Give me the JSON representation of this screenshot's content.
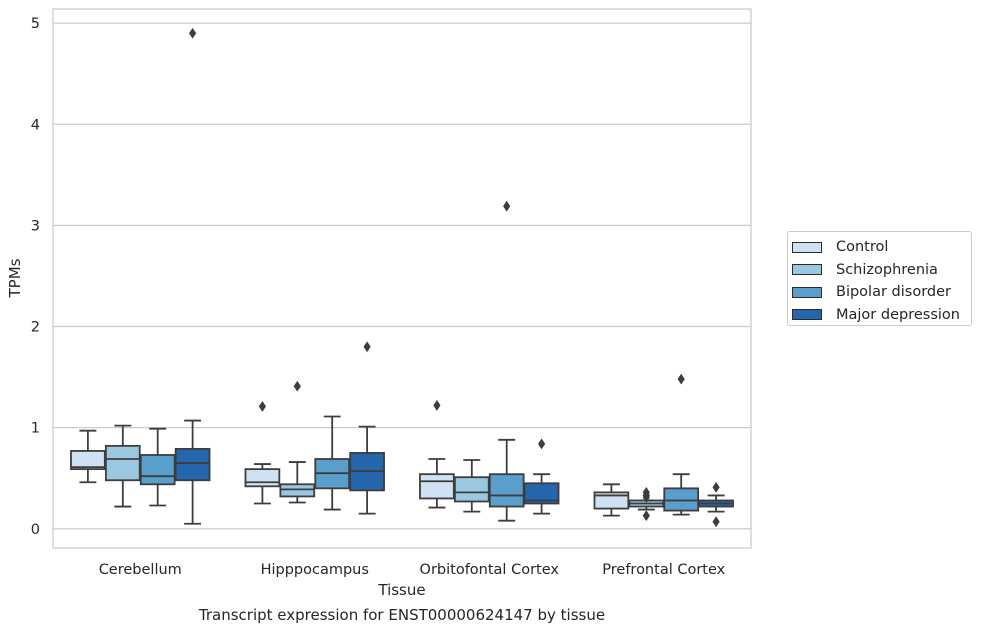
{
  "chart_data": {
    "type": "box",
    "title": "",
    "caption": "Transcript expression for ENST00000624147 by tissue",
    "xlabel": "Tissue",
    "ylabel": "TPMs",
    "ylim": [
      -0.19,
      5.14
    ],
    "yticks": [
      0,
      1,
      2,
      3,
      4,
      5
    ],
    "grid": "horizontal",
    "legend_position": "right",
    "categories": [
      "Cerebellum",
      "Hipppocampus",
      "Orbitofontal Cortex",
      "Prefrontal Cortex"
    ],
    "series": [
      {
        "name": "Control",
        "color": "#cfe1f2",
        "boxes": [
          {
            "whislo": 0.46,
            "q1": 0.59,
            "med": 0.61,
            "q3": 0.77,
            "whishi": 0.97,
            "fliers": []
          },
          {
            "whislo": 0.25,
            "q1": 0.42,
            "med": 0.46,
            "q3": 0.59,
            "whishi": 0.64,
            "fliers": [
              1.21
            ]
          },
          {
            "whislo": 0.21,
            "q1": 0.3,
            "med": 0.47,
            "q3": 0.54,
            "whishi": 0.69,
            "fliers": [
              1.22
            ]
          },
          {
            "whislo": 0.13,
            "q1": 0.2,
            "med": 0.33,
            "q3": 0.36,
            "whishi": 0.44,
            "fliers": []
          }
        ]
      },
      {
        "name": "Schizophrenia",
        "color": "#9ac8e0",
        "boxes": [
          {
            "whislo": 0.22,
            "q1": 0.48,
            "med": 0.69,
            "q3": 0.82,
            "whishi": 1.02,
            "fliers": []
          },
          {
            "whislo": 0.26,
            "q1": 0.32,
            "med": 0.39,
            "q3": 0.44,
            "whishi": 0.66,
            "fliers": [
              1.41
            ]
          },
          {
            "whislo": 0.17,
            "q1": 0.27,
            "med": 0.36,
            "q3": 0.51,
            "whishi": 0.68,
            "fliers": []
          },
          {
            "whislo": 0.19,
            "q1": 0.22,
            "med": 0.25,
            "q3": 0.28,
            "whishi": 0.28,
            "fliers": [
              0.13,
              0.31,
              0.33,
              0.36
            ]
          }
        ]
      },
      {
        "name": "Bipolar disorder",
        "color": "#5a9ecb",
        "boxes": [
          {
            "whislo": 0.23,
            "q1": 0.44,
            "med": 0.52,
            "q3": 0.73,
            "whishi": 0.99,
            "fliers": []
          },
          {
            "whislo": 0.19,
            "q1": 0.4,
            "med": 0.55,
            "q3": 0.69,
            "whishi": 1.11,
            "fliers": []
          },
          {
            "whislo": 0.08,
            "q1": 0.22,
            "med": 0.33,
            "q3": 0.54,
            "whishi": 0.88,
            "fliers": [
              3.19
            ]
          },
          {
            "whislo": 0.14,
            "q1": 0.18,
            "med": 0.28,
            "q3": 0.4,
            "whishi": 0.54,
            "fliers": [
              1.48
            ]
          }
        ]
      },
      {
        "name": "Major depression",
        "color": "#2566ad",
        "boxes": [
          {
            "whislo": 0.05,
            "q1": 0.48,
            "med": 0.65,
            "q3": 0.79,
            "whishi": 1.07,
            "fliers": [
              4.9
            ]
          },
          {
            "whislo": 0.15,
            "q1": 0.38,
            "med": 0.57,
            "q3": 0.75,
            "whishi": 1.01,
            "fliers": [
              1.8
            ]
          },
          {
            "whislo": 0.15,
            "q1": 0.25,
            "med": 0.28,
            "q3": 0.45,
            "whishi": 0.54,
            "fliers": [
              0.84
            ]
          },
          {
            "whislo": 0.17,
            "q1": 0.22,
            "med": 0.25,
            "q3": 0.28,
            "whishi": 0.33,
            "fliers": [
              0.07,
              0.41
            ]
          }
        ]
      }
    ]
  }
}
